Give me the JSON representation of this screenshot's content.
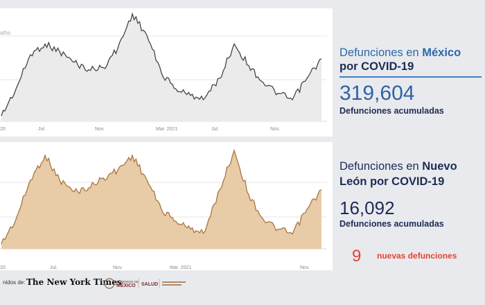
{
  "charts": {
    "mexico": {
      "y_label": "aths",
      "x_ticks": [
        "20",
        "Jul.",
        "Nov.",
        "Mar. 2021",
        "Jul.",
        "Nov."
      ]
    },
    "nuevo_leon": {
      "x_ticks": [
        "20",
        "Jul.",
        "Nov.",
        "Mar. 2021",
        "Nov."
      ]
    }
  },
  "chart_data": [
    {
      "type": "area",
      "x": [
        "2020-04",
        "2020-05",
        "2020-06",
        "2020-07",
        "2020-08",
        "2020-09",
        "2020-10",
        "2020-11",
        "2020-12",
        "2021-01",
        "2021-02",
        "2021-03",
        "2021-04",
        "2021-05",
        "2021-06",
        "2021-07",
        "2021-08",
        "2021-09",
        "2021-10",
        "2021-11",
        "2021-12",
        "2022-01",
        "2022-02"
      ],
      "values": [
        5,
        30,
        62,
        72,
        65,
        55,
        48,
        50,
        68,
        100,
        80,
        45,
        30,
        24,
        22,
        40,
        72,
        52,
        36,
        26,
        20,
        40,
        58
      ],
      "color": "#444444",
      "fill": "#ebebeb"
    },
    {
      "type": "area",
      "x": [
        "2020-04",
        "2020-05",
        "2020-06",
        "2020-07",
        "2020-08",
        "2020-09",
        "2020-10",
        "2020-11",
        "2020-12",
        "2021-01",
        "2021-02",
        "2021-03",
        "2021-04",
        "2021-05",
        "2021-06",
        "2021-07",
        "2021-08",
        "2021-09",
        "2021-10",
        "2021-11",
        "2021-12",
        "2022-01",
        "2022-02"
      ],
      "values": [
        5,
        30,
        70,
        95,
        70,
        58,
        62,
        72,
        80,
        95,
        70,
        40,
        28,
        20,
        18,
        60,
        100,
        55,
        30,
        20,
        15,
        40,
        60
      ],
      "color": "#a8753e",
      "fill": "#e8cba7"
    }
  ],
  "mexico": {
    "title_pre": "Defunciones en ",
    "title_hl": "México",
    "title_line2": "por COVID-19",
    "total": "319,604",
    "caption": "Defunciones acumuladas"
  },
  "nuevo_leon": {
    "title_pre": "Defunciones en ",
    "title_hl": "Nuevo",
    "title_line2": "León por COVID-19",
    "total": "16,092",
    "caption": "Defunciones acumuladas",
    "new_count": "9",
    "new_label": "nuevas defunciones"
  },
  "footer": {
    "source_prefix": "nidos de:",
    "nyt": "The New York Times",
    "gob_label": "GOBIERNO DE MÉXICO",
    "salud_label": "SALUD"
  }
}
